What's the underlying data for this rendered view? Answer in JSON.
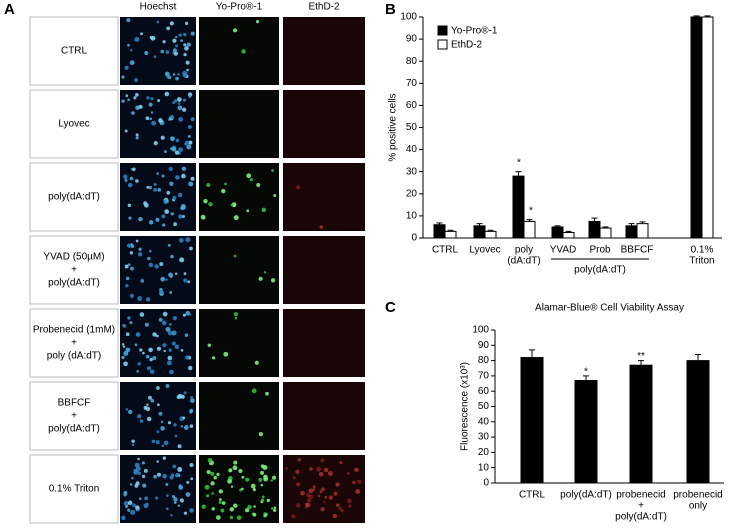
{
  "panel_labels": [
    "A",
    "B",
    "C"
  ],
  "panel_a": {
    "columns": [
      "Hoechst",
      "Yo-Pro®-1",
      "EthD-2"
    ],
    "rows": [
      [
        "CTRL"
      ],
      [
        "Lyovec"
      ],
      [
        "poly(dA:dT)"
      ],
      [
        "YVAD (50µM)",
        "+",
        "poly(dA:dT)"
      ],
      [
        "Probenecid (1mM)",
        "+",
        "poly (dA:dT)"
      ],
      [
        "BBFCF",
        "+",
        "poly(dA:dT)"
      ],
      [
        "0.1% Triton"
      ]
    ]
  },
  "chart_data": [
    {
      "type": "bar",
      "ylabel": "% positive cells",
      "categories": [
        [
          "CTRL"
        ],
        [
          "Lyovec"
        ],
        [
          "poly",
          "(dA:dT)"
        ],
        [
          "YVAD"
        ],
        [
          "Prob"
        ],
        [
          "BBFCF"
        ],
        [
          "0.1%",
          "Triton"
        ]
      ],
      "group_label": "poly(dA:dT)",
      "series": [
        {
          "name": "Yo-Pro®-1",
          "color": "#000000",
          "values": [
            6,
            5.5,
            28,
            5,
            7.5,
            5.5,
            100
          ],
          "errors": [
            0.8,
            1,
            2,
            0.5,
            1.5,
            1,
            0.5
          ]
        },
        {
          "name": "EthD-2",
          "color": "#ffffff",
          "values": [
            3,
            3,
            7.5,
            2.5,
            4.5,
            6.5,
            100
          ],
          "errors": [
            0.5,
            0.5,
            0.8,
            0.5,
            0.5,
            0.8,
            0.5
          ]
        }
      ],
      "annotations": [
        "*",
        "*"
      ],
      "ylim": [
        0,
        100
      ],
      "yticks": [
        0,
        10,
        20,
        30,
        40,
        50,
        60,
        70,
        80,
        90,
        100
      ],
      "legend": "top-left"
    },
    {
      "type": "bar",
      "title": "Alamar-Blue® Cell Viability Assay",
      "ylabel": "Fluorescence (x10³)",
      "categories": [
        [
          "CTRL"
        ],
        [
          "poly(dA:dT)"
        ],
        [
          "probenecid",
          "+",
          "poly(dA:dT)"
        ],
        [
          "probenecid",
          "only"
        ]
      ],
      "values": [
        82,
        67,
        77,
        80
      ],
      "errors": [
        5,
        3,
        3,
        4
      ],
      "color": "#000000",
      "annotations": [
        "*",
        "**"
      ],
      "ylim": [
        0,
        100
      ],
      "yticks": [
        0,
        10,
        20,
        30,
        40,
        50,
        60,
        70,
        80,
        90,
        100
      ]
    }
  ]
}
